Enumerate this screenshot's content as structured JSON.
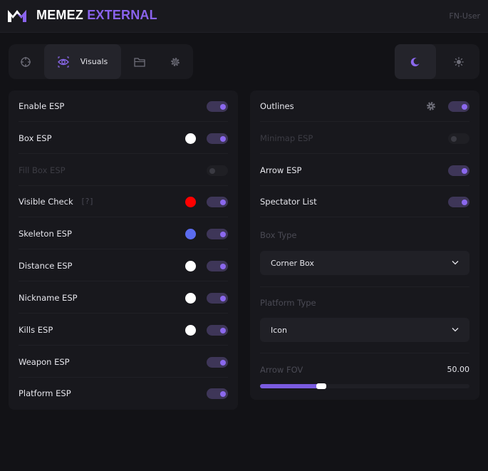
{
  "header": {
    "brand_part1": "MEMEZ",
    "brand_part2": "EXTERNAL",
    "user": "FN-User"
  },
  "tabs": [
    {
      "icon": "crosshair-icon",
      "label": ""
    },
    {
      "icon": "eye-icon",
      "label": "Visuals",
      "active": true
    },
    {
      "icon": "folder-icon",
      "label": ""
    },
    {
      "icon": "gear-icon",
      "label": ""
    }
  ],
  "theme": {
    "active": "dark",
    "options": [
      "moon-icon",
      "sun-icon"
    ]
  },
  "colors": {
    "accent": "#8b68ee",
    "toggle_on_bg": "#3e3658",
    "red": "#ff0000",
    "blue": "#5b6cf0",
    "white": "#ffffff"
  },
  "left_panel": {
    "rows": [
      {
        "label": "Enable ESP",
        "on": true
      },
      {
        "label": "Box ESP",
        "on": true,
        "color": "#ffffff"
      },
      {
        "label": "Fill Box ESP",
        "on": false,
        "disabled": true
      },
      {
        "label": "Visible Check",
        "help": "[?]",
        "on": true,
        "color": "#ff0000"
      },
      {
        "label": "Skeleton ESP",
        "on": true,
        "color": "#5b6cf0"
      },
      {
        "label": "Distance ESP",
        "on": true,
        "color": "#ffffff"
      },
      {
        "label": "Nickname ESP",
        "on": true,
        "color": "#ffffff"
      },
      {
        "label": "Kills ESP",
        "on": true,
        "color": "#ffffff"
      },
      {
        "label": "Weapon ESP",
        "on": true
      },
      {
        "label": "Platform ESP",
        "on": true
      }
    ]
  },
  "right_panel": {
    "rows": [
      {
        "label": "Outlines",
        "on": true,
        "settings_icon": "gear-icon"
      },
      {
        "label": "Minimap ESP",
        "on": false,
        "disabled": true
      },
      {
        "label": "Arrow ESP",
        "on": true
      },
      {
        "label": "Spectator List",
        "on": true
      }
    ],
    "box_type": {
      "label": "Box Type",
      "value": "Corner Box"
    },
    "platform_type": {
      "label": "Platform Type",
      "value": "Icon"
    },
    "arrow_fov": {
      "label": "Arrow FOV",
      "value": "50.00",
      "fraction": 0.29
    }
  }
}
